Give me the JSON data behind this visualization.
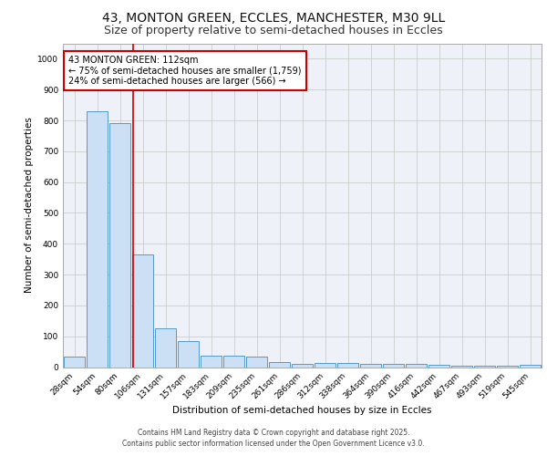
{
  "title1": "43, MONTON GREEN, ECCLES, MANCHESTER, M30 9LL",
  "title2": "Size of property relative to semi-detached houses in Eccles",
  "xlabel": "Distribution of semi-detached houses by size in Eccles",
  "ylabel": "Number of semi-detached properties",
  "bar_labels": [
    "28sqm",
    "54sqm",
    "80sqm",
    "106sqm",
    "131sqm",
    "157sqm",
    "183sqm",
    "209sqm",
    "235sqm",
    "261sqm",
    "286sqm",
    "312sqm",
    "338sqm",
    "364sqm",
    "390sqm",
    "416sqm",
    "442sqm",
    "467sqm",
    "493sqm",
    "519sqm",
    "545sqm"
  ],
  "bar_values": [
    35,
    830,
    790,
    365,
    125,
    83,
    37,
    37,
    33,
    15,
    10,
    13,
    13,
    10,
    10,
    10,
    7,
    5,
    5,
    5,
    8
  ],
  "bar_color": "#cce0f5",
  "bar_edgecolor": "#5599cc",
  "red_line_x": 2.575,
  "annotation_text": "43 MONTON GREEN: 112sqm\n← 75% of semi-detached houses are smaller (1,759)\n24% of semi-detached houses are larger (566) →",
  "annotation_box_color": "#ffffff",
  "annotation_box_edgecolor": "#cc0000",
  "ylim": [
    0,
    1050
  ],
  "yticks": [
    0,
    100,
    200,
    300,
    400,
    500,
    600,
    700,
    800,
    900,
    1000
  ],
  "grid_color": "#cccccc",
  "bg_color": "#eef2f8",
  "footer1": "Contains HM Land Registry data © Crown copyright and database right 2025.",
  "footer2": "Contains public sector information licensed under the Open Government Licence v3.0.",
  "title1_fontsize": 10,
  "title2_fontsize": 9,
  "tick_fontsize": 6.5,
  "axis_label_fontsize": 7.5,
  "annot_fontsize": 7
}
